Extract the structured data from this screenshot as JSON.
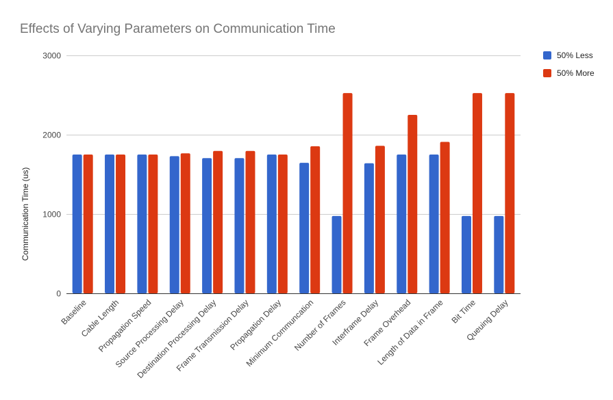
{
  "chart_data": {
    "type": "bar",
    "title": "Effects of Varying Parameters on Communication Time",
    "xlabel": "",
    "ylabel": "Communication Time (us)",
    "ylim": [
      0,
      3000
    ],
    "yticks": [
      0,
      1000,
      2000,
      3000
    ],
    "ytick_labels": [
      "0",
      "1000",
      "2000",
      "3000"
    ],
    "grid": true,
    "legend_position": "top-right",
    "categories": [
      "Baseline",
      "Cable Length",
      "Propagation Speed",
      "Source Processing Delay",
      "Destination Processing Delay",
      "Frame Transmission Delay",
      "Propagation Delay",
      "Minimum Communcation",
      "Number of Frames",
      "Interframe Delay",
      "Frame Overhead",
      "Length of Data in Frame",
      "Bit Time",
      "Queuing Delay"
    ],
    "series": [
      {
        "name": "50% Less",
        "color": "#3366cc",
        "values": [
          1750,
          1750,
          1750,
          1730,
          1705,
          1705,
          1750,
          1645,
          975,
          1640,
          1750,
          1750,
          975,
          975
        ]
      },
      {
        "name": "50% More",
        "color": "#dc3912",
        "values": [
          1750,
          1750,
          1750,
          1765,
          1795,
          1795,
          1750,
          1855,
          2525,
          1860,
          2250,
          1910,
          2525,
          2525
        ]
      }
    ]
  }
}
